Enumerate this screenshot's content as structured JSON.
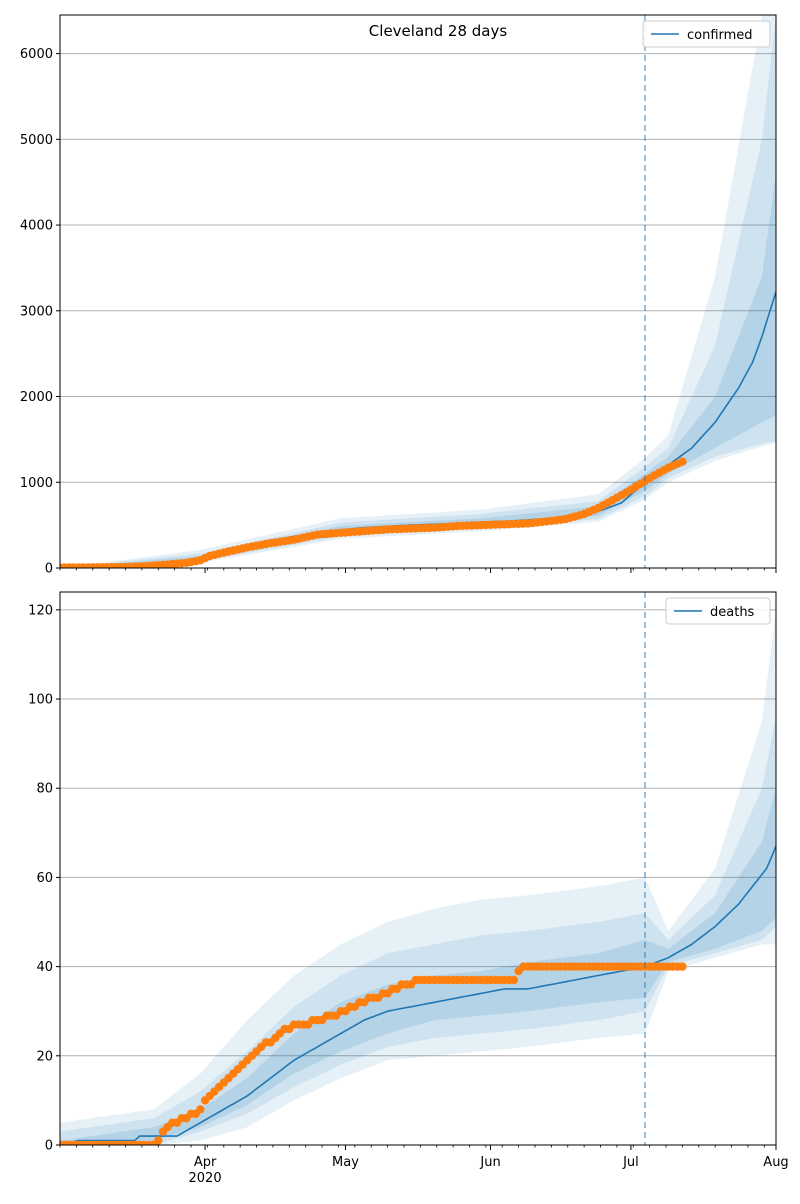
{
  "chart_data": [
    {
      "type": "line",
      "title": "Cleveland 28 days",
      "legend_label": "confirmed",
      "legend_position": "top-right",
      "x_range": [
        0,
        153
      ],
      "x_ticks": [
        {
          "label": "Apr",
          "day": 31
        },
        {
          "label": "May",
          "day": 61
        },
        {
          "label": "Jun",
          "day": 92
        },
        {
          "label": "Jul",
          "day": 122
        },
        {
          "label": "Aug",
          "day": 153
        }
      ],
      "ylim": [
        0,
        6450
      ],
      "y_ticks": [
        0,
        1000,
        2000,
        3000,
        4000,
        5000,
        6000
      ],
      "grid": true,
      "forecast_start_day": 125,
      "line_color": "#1f77b4",
      "observed_color": "#ff7f0e",
      "forecast_knots": [
        [
          0,
          0
        ],
        [
          15,
          8
        ],
        [
          20,
          28
        ],
        [
          25,
          55
        ],
        [
          30,
          120
        ],
        [
          35,
          200
        ],
        [
          40,
          260
        ],
        [
          45,
          320
        ],
        [
          50,
          370
        ],
        [
          55,
          410
        ],
        [
          60,
          445
        ],
        [
          65,
          470
        ],
        [
          70,
          485
        ],
        [
          75,
          500
        ],
        [
          80,
          510
        ],
        [
          85,
          520
        ],
        [
          90,
          535
        ],
        [
          95,
          545
        ],
        [
          100,
          560
        ],
        [
          105,
          580
        ],
        [
          110,
          610
        ],
        [
          115,
          660
        ],
        [
          120,
          760
        ],
        [
          125,
          1000
        ],
        [
          130,
          1200
        ],
        [
          135,
          1400
        ],
        [
          140,
          1700
        ],
        [
          145,
          2100
        ],
        [
          148,
          2400
        ],
        [
          150,
          2700
        ],
        [
          153,
          3220
        ]
      ],
      "band_inner": {
        "low": [
          [
            0,
            0
          ],
          [
            30,
            100
          ],
          [
            60,
            400
          ],
          [
            90,
            490
          ],
          [
            115,
            610
          ],
          [
            125,
            900
          ],
          [
            130,
            1100
          ],
          [
            140,
            1400
          ],
          [
            150,
            1700
          ],
          [
            153,
            1780
          ]
        ],
        "high": [
          [
            0,
            0
          ],
          [
            30,
            140
          ],
          [
            60,
            490
          ],
          [
            90,
            580
          ],
          [
            115,
            720
          ],
          [
            125,
            1100
          ],
          [
            130,
            1300
          ],
          [
            140,
            2000
          ],
          [
            150,
            3400
          ],
          [
            153,
            4600
          ]
        ]
      },
      "band_mid": {
        "low": [
          [
            0,
            0
          ],
          [
            30,
            80
          ],
          [
            60,
            370
          ],
          [
            90,
            460
          ],
          [
            115,
            570
          ],
          [
            125,
            840
          ],
          [
            130,
            1050
          ],
          [
            140,
            1300
          ],
          [
            150,
            1450
          ],
          [
            153,
            1480
          ]
        ],
        "high": [
          [
            0,
            0
          ],
          [
            30,
            170
          ],
          [
            60,
            530
          ],
          [
            90,
            630
          ],
          [
            115,
            780
          ],
          [
            125,
            1180
          ],
          [
            130,
            1400
          ],
          [
            140,
            2600
          ],
          [
            150,
            5000
          ],
          [
            153,
            6450
          ]
        ]
      },
      "band_outer": {
        "low": [
          [
            0,
            0
          ],
          [
            30,
            60
          ],
          [
            60,
            340
          ],
          [
            90,
            430
          ],
          [
            115,
            540
          ],
          [
            125,
            800
          ],
          [
            130,
            1000
          ],
          [
            140,
            1250
          ],
          [
            150,
            1420
          ],
          [
            153,
            1460
          ]
        ],
        "high": [
          [
            0,
            0
          ],
          [
            30,
            210
          ],
          [
            60,
            580
          ],
          [
            90,
            680
          ],
          [
            115,
            860
          ],
          [
            125,
            1280
          ],
          [
            130,
            1550
          ],
          [
            140,
            3400
          ],
          [
            150,
            6450
          ],
          [
            153,
            6450
          ]
        ]
      },
      "observed_knots": [
        [
          0,
          5
        ],
        [
          13,
          10
        ],
        [
          18,
          20
        ],
        [
          22,
          35
        ],
        [
          27,
          60
        ],
        [
          30,
          90
        ],
        [
          32,
          140
        ],
        [
          35,
          180
        ],
        [
          40,
          240
        ],
        [
          45,
          290
        ],
        [
          50,
          330
        ],
        [
          55,
          390
        ],
        [
          60,
          410
        ],
        [
          65,
          430
        ],
        [
          70,
          450
        ],
        [
          75,
          460
        ],
        [
          80,
          470
        ],
        [
          85,
          490
        ],
        [
          90,
          500
        ],
        [
          95,
          510
        ],
        [
          100,
          520
        ],
        [
          105,
          550
        ],
        [
          108,
          570
        ],
        [
          112,
          630
        ],
        [
          115,
          700
        ],
        [
          118,
          790
        ],
        [
          121,
          880
        ],
        [
          124,
          980
        ],
        [
          127,
          1080
        ],
        [
          130,
          1170
        ],
        [
          133,
          1240
        ]
      ]
    },
    {
      "type": "line",
      "title": "",
      "legend_label": "deaths",
      "legend_position": "top-right",
      "x_range": [
        0,
        153
      ],
      "x_ticks": [
        {
          "label": "Apr",
          "day": 31
        },
        {
          "label": "May",
          "day": 61
        },
        {
          "label": "Jun",
          "day": 92
        },
        {
          "label": "Jul",
          "day": 122
        },
        {
          "label": "Aug",
          "day": 153
        }
      ],
      "x_sublabel": "2020",
      "ylim": [
        0,
        124
      ],
      "y_ticks": [
        0,
        20,
        40,
        60,
        80,
        100,
        120
      ],
      "grid": true,
      "forecast_start_day": 125,
      "forecast_knots": [
        [
          0,
          0
        ],
        [
          4,
          1
        ],
        [
          16,
          1
        ],
        [
          17,
          2
        ],
        [
          25,
          2
        ],
        [
          30,
          5
        ],
        [
          35,
          8
        ],
        [
          40,
          11
        ],
        [
          45,
          15
        ],
        [
          50,
          19
        ],
        [
          55,
          22
        ],
        [
          60,
          25
        ],
        [
          65,
          28
        ],
        [
          70,
          30
        ],
        [
          75,
          31
        ],
        [
          80,
          32
        ],
        [
          85,
          33
        ],
        [
          90,
          34
        ],
        [
          95,
          35
        ],
        [
          100,
          35
        ],
        [
          105,
          36
        ],
        [
          110,
          37
        ],
        [
          115,
          38
        ],
        [
          120,
          39
        ],
        [
          125,
          40
        ],
        [
          130,
          42
        ],
        [
          135,
          45
        ],
        [
          140,
          49
        ],
        [
          145,
          54
        ],
        [
          148,
          58
        ],
        [
          151,
          62
        ],
        [
          153,
          67
        ]
      ],
      "band_inner": {
        "low": [
          [
            0,
            0
          ],
          [
            20,
            1
          ],
          [
            30,
            4
          ],
          [
            40,
            9
          ],
          [
            50,
            16
          ],
          [
            60,
            21
          ],
          [
            70,
            25
          ],
          [
            80,
            28
          ],
          [
            90,
            29
          ],
          [
            100,
            30
          ],
          [
            115,
            32
          ],
          [
            125,
            33
          ],
          [
            130,
            41
          ],
          [
            140,
            44
          ],
          [
            150,
            48
          ],
          [
            153,
            51
          ]
        ],
        "high": [
          [
            0,
            1
          ],
          [
            20,
            4
          ],
          [
            30,
            8
          ],
          [
            40,
            15
          ],
          [
            50,
            25
          ],
          [
            60,
            32
          ],
          [
            70,
            36
          ],
          [
            80,
            38
          ],
          [
            90,
            39
          ],
          [
            100,
            41
          ],
          [
            115,
            43
          ],
          [
            125,
            46
          ],
          [
            130,
            44
          ],
          [
            140,
            52
          ],
          [
            150,
            68
          ],
          [
            153,
            80
          ]
        ]
      },
      "band_mid": {
        "low": [
          [
            0,
            0
          ],
          [
            20,
            0
          ],
          [
            30,
            3
          ],
          [
            40,
            7
          ],
          [
            50,
            13
          ],
          [
            60,
            18
          ],
          [
            70,
            22
          ],
          [
            80,
            24
          ],
          [
            90,
            25
          ],
          [
            100,
            26
          ],
          [
            115,
            28
          ],
          [
            125,
            30
          ],
          [
            130,
            40
          ],
          [
            140,
            43
          ],
          [
            150,
            46
          ],
          [
            153,
            49
          ]
        ],
        "high": [
          [
            0,
            3
          ],
          [
            20,
            6
          ],
          [
            30,
            12
          ],
          [
            40,
            21
          ],
          [
            50,
            31
          ],
          [
            60,
            38
          ],
          [
            70,
            43
          ],
          [
            80,
            45
          ],
          [
            90,
            47
          ],
          [
            100,
            48
          ],
          [
            115,
            50
          ],
          [
            125,
            52
          ],
          [
            130,
            46
          ],
          [
            140,
            56
          ],
          [
            150,
            80
          ],
          [
            153,
            96
          ]
        ]
      },
      "band_outer": {
        "low": [
          [
            0,
            0
          ],
          [
            20,
            0
          ],
          [
            30,
            1
          ],
          [
            40,
            4
          ],
          [
            50,
            10
          ],
          [
            60,
            15
          ],
          [
            70,
            19
          ],
          [
            80,
            20
          ],
          [
            90,
            21
          ],
          [
            100,
            22
          ],
          [
            115,
            24
          ],
          [
            125,
            25
          ],
          [
            130,
            39
          ],
          [
            140,
            42
          ],
          [
            150,
            45
          ],
          [
            153,
            45
          ]
        ],
        "high": [
          [
            0,
            5
          ],
          [
            20,
            8
          ],
          [
            30,
            16
          ],
          [
            40,
            28
          ],
          [
            50,
            38
          ],
          [
            60,
            45
          ],
          [
            70,
            50
          ],
          [
            80,
            53
          ],
          [
            90,
            55
          ],
          [
            100,
            56
          ],
          [
            115,
            58
          ],
          [
            125,
            60
          ],
          [
            130,
            48
          ],
          [
            140,
            62
          ],
          [
            150,
            95
          ],
          [
            153,
            120
          ]
        ]
      },
      "observed_knots": [
        [
          0,
          0
        ],
        [
          20,
          0
        ],
        [
          21,
          1
        ],
        [
          22,
          3
        ],
        [
          24,
          5
        ],
        [
          27,
          6
        ],
        [
          30,
          8
        ],
        [
          32,
          11
        ],
        [
          35,
          14
        ],
        [
          38,
          17
        ],
        [
          42,
          21
        ],
        [
          46,
          24
        ],
        [
          48,
          26
        ],
        [
          52,
          27
        ],
        [
          55,
          28
        ],
        [
          58,
          29
        ],
        [
          61,
          30
        ],
        [
          64,
          32
        ],
        [
          68,
          33
        ],
        [
          71,
          35
        ],
        [
          74,
          36
        ],
        [
          78,
          37
        ],
        [
          90,
          37
        ],
        [
          97,
          37
        ],
        [
          98,
          39
        ],
        [
          99,
          40
        ],
        [
          133,
          40
        ]
      ]
    }
  ]
}
